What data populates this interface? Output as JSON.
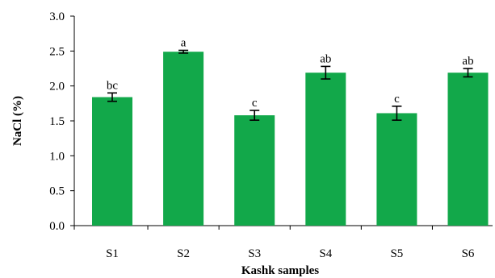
{
  "chart_data": {
    "type": "bar",
    "categories": [
      "S1",
      "S2",
      "S3",
      "S4",
      "S5",
      "S6"
    ],
    "values": [
      1.84,
      2.49,
      1.58,
      2.19,
      1.61,
      2.19
    ],
    "errors": [
      0.06,
      0.02,
      0.07,
      0.09,
      0.1,
      0.06
    ],
    "significance_letters": [
      "bc",
      "a",
      "c",
      "ab",
      "c",
      "ab"
    ],
    "title": "",
    "xlabel": "Kashk samples",
    "ylabel": "NaCl (%)",
    "ylim": [
      0,
      3.0
    ],
    "yticks": [
      "0.0",
      "0.5",
      "1.0",
      "1.5",
      "2.0",
      "2.5",
      "3.0"
    ],
    "bar_color": "#12a84a",
    "grid": false,
    "legend": "none"
  }
}
